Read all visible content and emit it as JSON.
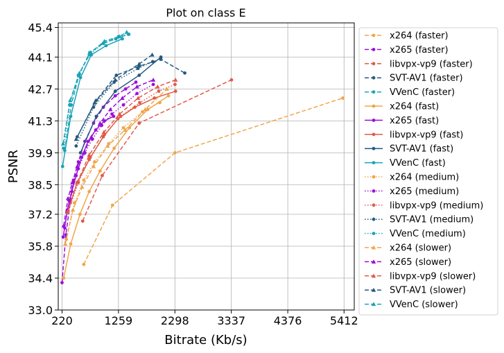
{
  "chart_data": {
    "type": "line",
    "title": "Plot on class E",
    "xlabel": "Bitrate (Kb/s)",
    "ylabel": "PSNR",
    "xlim": [
      150,
      5600
    ],
    "ylim": [
      33.0,
      45.6
    ],
    "xticks": [
      220,
      1259,
      2298,
      3337,
      4376,
      5412
    ],
    "xtick_labels": [
      "220",
      "1259",
      "2298",
      "3337",
      "4376",
      "5412"
    ],
    "yticks": [
      33.0,
      34.4,
      35.8,
      37.2,
      38.5,
      39.9,
      41.3,
      42.7,
      44.1,
      45.4
    ],
    "ytick_labels": [
      "33.0",
      "34.4",
      "35.8",
      "37.2",
      "38.5",
      "39.9",
      "41.3",
      "42.7",
      "44.1",
      "45.4"
    ],
    "grid": true,
    "legend_position": "right, outside",
    "series": [
      {
        "name": "x264 (faster)",
        "color": "#f0a64a",
        "linestyle": "dashed",
        "marker": "circle",
        "x": [
          620,
          1150,
          2300,
          5390
        ],
        "y": [
          35.0,
          37.6,
          39.9,
          42.3
        ]
      },
      {
        "name": "x265 (faster)",
        "color": "#9b10d8",
        "linestyle": "dashed",
        "marker": "circle",
        "x": [
          220,
          290,
          370,
          430,
          520,
          640,
          800,
          980,
          1200,
          1390,
          1580
        ],
        "y": [
          34.2,
          36.3,
          37.7,
          38.7,
          39.5,
          40.4,
          41.2,
          41.9,
          42.4,
          42.7,
          43.0
        ]
      },
      {
        "name": "libvpx-vp9 (faster)",
        "color": "#e05a48",
        "linestyle": "dashed",
        "marker": "circle",
        "x": [
          600,
          960,
          1640,
          3340
        ],
        "y": [
          36.9,
          38.9,
          41.2,
          43.1
        ]
      },
      {
        "name": "SVT-AV1 (faster)",
        "color": "#255a80",
        "linestyle": "dashed",
        "marker": "circle",
        "x": [
          500,
          850,
          1220,
          1640,
          2040,
          2480
        ],
        "y": [
          40.6,
          42.2,
          43.3,
          43.7,
          44.0,
          43.4
        ]
      },
      {
        "name": "VVenC (faster)",
        "color": "#1aa3b5",
        "linestyle": "dashed",
        "marker": "circle",
        "x": [
          270,
          390,
          530,
          730,
          980,
          1210,
          1440
        ],
        "y": [
          40.0,
          42.0,
          43.3,
          44.3,
          44.7,
          44.9,
          45.1
        ]
      },
      {
        "name": "x264 (fast)",
        "color": "#f0a64a",
        "linestyle": "solid",
        "marker": "circle",
        "x": [
          250,
          380,
          550,
          720,
          920,
          1180,
          1460,
          1800,
          2180
        ],
        "y": [
          34.4,
          35.9,
          37.2,
          38.2,
          39.1,
          40.1,
          41.0,
          41.8,
          42.4
        ]
      },
      {
        "name": "x265 (fast)",
        "color": "#9b10d8",
        "linestyle": "solid",
        "marker": "circle",
        "x": [
          240,
          320,
          400,
          480,
          580,
          700,
          840,
          1000,
          1170
        ],
        "y": [
          36.2,
          37.4,
          38.2,
          38.9,
          39.7,
          40.4,
          40.9,
          41.3,
          41.5
        ]
      },
      {
        "name": "libvpx-vp9 (fast)",
        "color": "#e05a48",
        "linestyle": "solid",
        "marker": "circle",
        "x": [
          320,
          500,
          720,
          980,
          1250,
          1560,
          1920,
          2310
        ],
        "y": [
          37.3,
          38.6,
          39.6,
          40.6,
          41.4,
          41.9,
          42.3,
          42.6
        ]
      },
      {
        "name": "SVT-AV1 (fast)",
        "color": "#255a80",
        "linestyle": "solid",
        "marker": "circle",
        "x": [
          560,
          850,
          1200,
          1640,
          2040
        ],
        "y": [
          39.9,
          41.5,
          42.6,
          43.3,
          44.1
        ]
      },
      {
        "name": "VVenC (fast)",
        "color": "#1aa3b5",
        "linestyle": "solid",
        "marker": "circle",
        "x": [
          230,
          380,
          560,
          760,
          1030,
          1330
        ],
        "y": [
          39.3,
          41.5,
          43.2,
          44.2,
          44.6,
          44.9
        ]
      },
      {
        "name": "x264 (medium)",
        "color": "#f0a64a",
        "linestyle": "dotted",
        "marker": "circle",
        "x": [
          300,
          450,
          620,
          820,
          1080,
          1350,
          1700,
          2020
        ],
        "y": [
          36.1,
          37.7,
          38.7,
          39.5,
          40.3,
          41.0,
          41.7,
          42.1
        ]
      },
      {
        "name": "x265 (medium)",
        "color": "#9b10d8",
        "linestyle": "dotted",
        "marker": "circle",
        "x": [
          270,
          350,
          430,
          520,
          640,
          780,
          950,
          1140,
          1350,
          1600,
          1900
        ],
        "y": [
          36.6,
          37.8,
          38.6,
          39.2,
          39.9,
          40.5,
          41.1,
          41.6,
          42.0,
          42.5,
          42.9
        ]
      },
      {
        "name": "libvpx-vp9 (medium)",
        "color": "#e05a48",
        "linestyle": "dotted",
        "marker": "circle",
        "x": [
          330,
          520,
          740,
          1000,
          1300,
          1650,
          2000,
          2300
        ],
        "y": [
          37.3,
          38.6,
          39.7,
          40.7,
          41.5,
          42.1,
          42.6,
          42.9
        ]
      },
      {
        "name": "SVT-AV1 (medium)",
        "color": "#255a80",
        "linestyle": "dotted",
        "marker": "circle",
        "x": [
          480,
          800,
          1180,
          1620,
          1890
        ],
        "y": [
          40.2,
          41.9,
          43.0,
          43.6,
          43.9
        ]
      },
      {
        "name": "VVenC (medium)",
        "color": "#1aa3b5",
        "linestyle": "dotted",
        "marker": "circle",
        "x": [
          250,
          360,
          520,
          720,
          980,
          1260,
          1450
        ],
        "y": [
          40.1,
          42.0,
          43.3,
          44.2,
          44.7,
          45.0,
          45.1
        ]
      },
      {
        "name": "x264 (slower)",
        "color": "#f0a64a",
        "linestyle": "dashed",
        "marker": "triangle",
        "x": [
          280,
          420,
          590,
          800,
          1060,
          1380,
          1750,
          2150
        ],
        "y": [
          35.9,
          37.4,
          38.4,
          39.3,
          40.2,
          40.9,
          41.8,
          42.7
        ]
      },
      {
        "name": "x265 (slower)",
        "color": "#9b10d8",
        "linestyle": "dashed",
        "marker": "triangle",
        "x": [
          250,
          330,
          410,
          500,
          620,
          760,
          920,
          1110,
          1330,
          1600,
          1900
        ],
        "y": [
          36.7,
          37.9,
          38.6,
          39.3,
          39.9,
          40.6,
          41.2,
          41.8,
          42.3,
          42.8,
          43.1
        ]
      },
      {
        "name": "libvpx-vp9 (slower)",
        "color": "#e05a48",
        "linestyle": "dashed",
        "marker": "triangle",
        "x": [
          320,
          500,
          720,
          990,
          1280,
          1620,
          1980,
          2310
        ],
        "y": [
          37.3,
          38.6,
          39.8,
          40.8,
          41.6,
          42.3,
          42.8,
          43.1
        ]
      },
      {
        "name": "SVT-AV1 (slower)",
        "color": "#255a80",
        "linestyle": "dashed",
        "marker": "triangle",
        "x": [
          480,
          820,
          1200,
          1640,
          1880
        ],
        "y": [
          40.5,
          42.1,
          43.1,
          43.8,
          44.2
        ]
      },
      {
        "name": "VVenC (slower)",
        "color": "#1aa3b5",
        "linestyle": "dashed",
        "marker": "triangle",
        "x": [
          240,
          370,
          540,
          750,
          1000,
          1280,
          1410
        ],
        "y": [
          40.3,
          42.2,
          43.4,
          44.3,
          44.8,
          45.0,
          45.2
        ]
      }
    ]
  }
}
